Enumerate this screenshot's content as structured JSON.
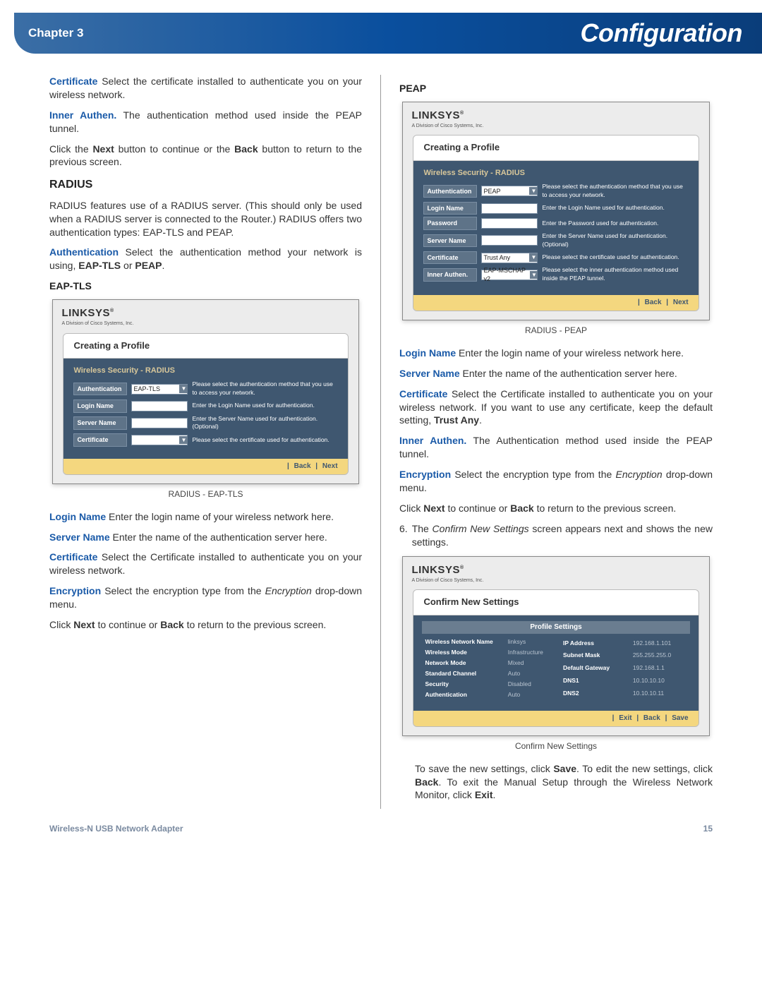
{
  "header": {
    "chapter": "Chapter 3",
    "title": "Configuration"
  },
  "left": {
    "p1_term": "Certificate",
    "p1_text": "  Select the certificate installed to authenticate you on your wireless network.",
    "p2_term": "Inner Authen.",
    "p2_text": " The authentication method used inside the PEAP tunnel.",
    "p3_a": "Click the ",
    "p3_b": "Next",
    "p3_c": " button to continue or the ",
    "p3_d": "Back",
    "p3_e": " button to return to the previous screen.",
    "h_radius": "RADIUS",
    "p4": "RADIUS features use of a RADIUS server. (This should only be used when a RADIUS server is connected to the Router.) RADIUS offers two authentication types: EAP-TLS and PEAP.",
    "p5_term": "Authentication",
    "p5_a": "  Select the authentication method your network is using, ",
    "p5_b": "EAP-TLS",
    "p5_c": " or ",
    "p5_d": "PEAP",
    "p5_e": ".",
    "h_eaptls": "EAP-TLS",
    "dlg_eaptls": {
      "brand": "LINKSYS",
      "sub": "A Division of Cisco Systems, Inc.",
      "title": "Creating a Profile",
      "section": "Wireless Security - RADIUS",
      "rows": [
        {
          "label": "Authentication",
          "type": "sel",
          "value": "EAP-TLS",
          "hint": "Please select the authentication method that you use to access your network."
        },
        {
          "label": "Login Name",
          "type": "field",
          "value": "",
          "hint": "Enter the Login Name used for authentication."
        },
        {
          "label": "Server Name",
          "type": "field",
          "value": "",
          "hint": "Enter the Server Name used for authentication. (Optional)"
        },
        {
          "label": "Certificate",
          "type": "sel",
          "value": "",
          "hint": "Please select the certificate used for authentication."
        }
      ],
      "btns": [
        "Back",
        "Next"
      ]
    },
    "cap1": "RADIUS - EAP-TLS",
    "p6_term": "Login Name",
    "p6_text": " Enter the login name of your wireless network here.",
    "p7_term": "Server Name",
    "p7_text": " Enter the name of the authentication server here.",
    "p8_term": "Certificate",
    "p8_text": "  Select the Certificate installed to authenticate you on your wireless network.",
    "p9_term": "Encryption",
    "p9_a": " Select the encryption type from the ",
    "p9_b": "Encryption",
    "p9_c": " drop-down menu.",
    "p10_a": "Click ",
    "p10_b": "Next",
    "p10_c": " to continue or ",
    "p10_d": "Back",
    "p10_e": " to return to the previous screen."
  },
  "right": {
    "h_peap": "PEAP",
    "dlg_peap": {
      "brand": "LINKSYS",
      "sub": "A Division of Cisco Systems, Inc.",
      "title": "Creating a Profile",
      "section": "Wireless Security - RADIUS",
      "rows": [
        {
          "label": "Authentication",
          "type": "sel",
          "value": "PEAP",
          "hint": "Please select the authentication method that you use to access your network."
        },
        {
          "label": "Login Name",
          "type": "field",
          "value": "",
          "hint": "Enter the Login Name used for authentication."
        },
        {
          "label": "Password",
          "type": "field",
          "value": "",
          "hint": "Enter the Password used for authentication."
        },
        {
          "label": "Server Name",
          "type": "field",
          "value": "",
          "hint": "Enter the Server Name used for authentication. (Optional)"
        },
        {
          "label": "Certificate",
          "type": "sel",
          "value": "Trust Any",
          "hint": "Please select the certificate used for authentication."
        },
        {
          "label": "Inner Authen.",
          "type": "sel",
          "value": "EAP-MSCHAP v2",
          "hint": "Please select the inner authentication method used inside the PEAP tunnel."
        }
      ],
      "btns": [
        "Back",
        "Next"
      ]
    },
    "cap2": "RADIUS - PEAP",
    "p1_term": "Login Name",
    "p1_text": " Enter the login name of your wireless network here.",
    "p2_term": "Server Name",
    "p2_text": " Enter the name of the authentication server here.",
    "p3_term": "Certificate",
    "p3_a": "  Select the Certificate installed to authenticate you on your wireless network.  If you want to use any certificate, keep the default setting, ",
    "p3_b": "Trust Any",
    "p3_c": ".",
    "p4_term": "Inner Authen.",
    "p4_text": " The Authentication method used inside the PEAP tunnel.",
    "p5_term": "Encryption",
    "p5_a": " Select the encryption type from the ",
    "p5_b": "Encryption",
    "p5_c": " drop-down menu.",
    "p6_a": "Click ",
    "p6_b": "Next",
    "p6_c": " to continue or ",
    "p6_d": "Back",
    "p6_e": " to return to the previous screen.",
    "p7_a": "The ",
    "p7_b": "Confirm New Settings",
    "p7_c": " screen appears next and shows the new settings.",
    "num": "6.",
    "dlg_confirm": {
      "brand": "LINKSYS",
      "sub": "A Division of Cisco Systems, Inc.",
      "title": "Confirm New Settings",
      "section": "Profile Settings",
      "settings_left": [
        {
          "k": "Wireless Network Name",
          "v": "linksys"
        },
        {
          "k": "Wireless Mode",
          "v": "Infrastructure"
        },
        {
          "k": "Network Mode",
          "v": "Mixed"
        },
        {
          "k": "Standard Channel",
          "v": "Auto"
        },
        {
          "k": "Security",
          "v": "Disabled"
        },
        {
          "k": "Authentication",
          "v": "Auto"
        }
      ],
      "settings_right": [
        {
          "k": "IP Address",
          "v": "192.168.1.101"
        },
        {
          "k": "Subnet Mask",
          "v": "255.255.255.0"
        },
        {
          "k": "Default Gateway",
          "v": "192.168.1.1"
        },
        {
          "k": "DNS1",
          "v": "10.10.10.10"
        },
        {
          "k": "DNS2",
          "v": "10.10.10.11"
        }
      ],
      "btns": [
        "Exit",
        "Back",
        "Save"
      ]
    },
    "cap3": "Confirm New Settings",
    "p8_a": "To save the new settings, click ",
    "p8_b": "Save",
    "p8_c": ". To edit the new settings, click ",
    "p8_d": "Back",
    "p8_e": ". To exit the Manual Setup through the Wireless Network Monitor, click ",
    "p8_f": "Exit",
    "p8_g": "."
  },
  "footer": {
    "product": "Wireless-N USB Network Adapter",
    "page": "15"
  }
}
